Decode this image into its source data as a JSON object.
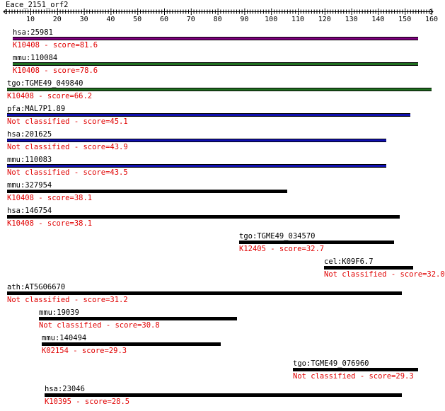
{
  "query": {
    "title": "Eace_2151_orf2"
  },
  "colors": {
    "score_text": "#e00000",
    "purple": "#800080",
    "green": "#207020",
    "blue": "#1010b0",
    "black": "#000000"
  },
  "axis": {
    "ticks": [
      "10",
      "20",
      "30",
      "40",
      "50",
      "60",
      "70",
      "80",
      "90",
      "100",
      "110",
      "120",
      "130",
      "140",
      "150",
      "160"
    ]
  },
  "hits": [
    {
      "label": "hsa:25981",
      "score": "K10408 - score=81.6",
      "color": "purple"
    },
    {
      "label": "mmu:110084",
      "score": "K10408 - score=78.6",
      "color": "green"
    },
    {
      "label": "tgo:TGME49_049840",
      "score": "K10408 - score=66.2",
      "color": "green"
    },
    {
      "label": "pfa:MAL7P1.89",
      "score": "Not classified - score=45.1",
      "color": "blue"
    },
    {
      "label": "hsa:201625",
      "score": "Not classified - score=43.9",
      "color": "blue"
    },
    {
      "label": "mmu:110083",
      "score": "Not classified - score=43.5",
      "color": "blue"
    },
    {
      "label": "mmu:327954",
      "score": "K10408 - score=38.1",
      "color": "black"
    },
    {
      "label": "hsa:146754",
      "score": "K10408 - score=38.1",
      "color": "black"
    },
    {
      "label": "tgo:TGME49_034570",
      "score": "K12405 - score=32.7",
      "color": "black"
    },
    {
      "label": "cel:K09F6.7",
      "score": "Not classified - score=32.0",
      "color": "black"
    },
    {
      "label": "ath:AT5G06670",
      "score": "Not classified - score=31.2",
      "color": "black"
    },
    {
      "label": "mmu:19039",
      "score": "Not classified - score=30.8",
      "color": "black"
    },
    {
      "label": "mmu:140494",
      "score": "K02154 - score=29.3",
      "color": "black"
    },
    {
      "label": "tgo:TGME49_076960",
      "score": "Not classified - score=29.3",
      "color": "black"
    },
    {
      "label": "hsa:23046",
      "score": "K10395 - score=28.5",
      "color": "black"
    }
  ]
}
